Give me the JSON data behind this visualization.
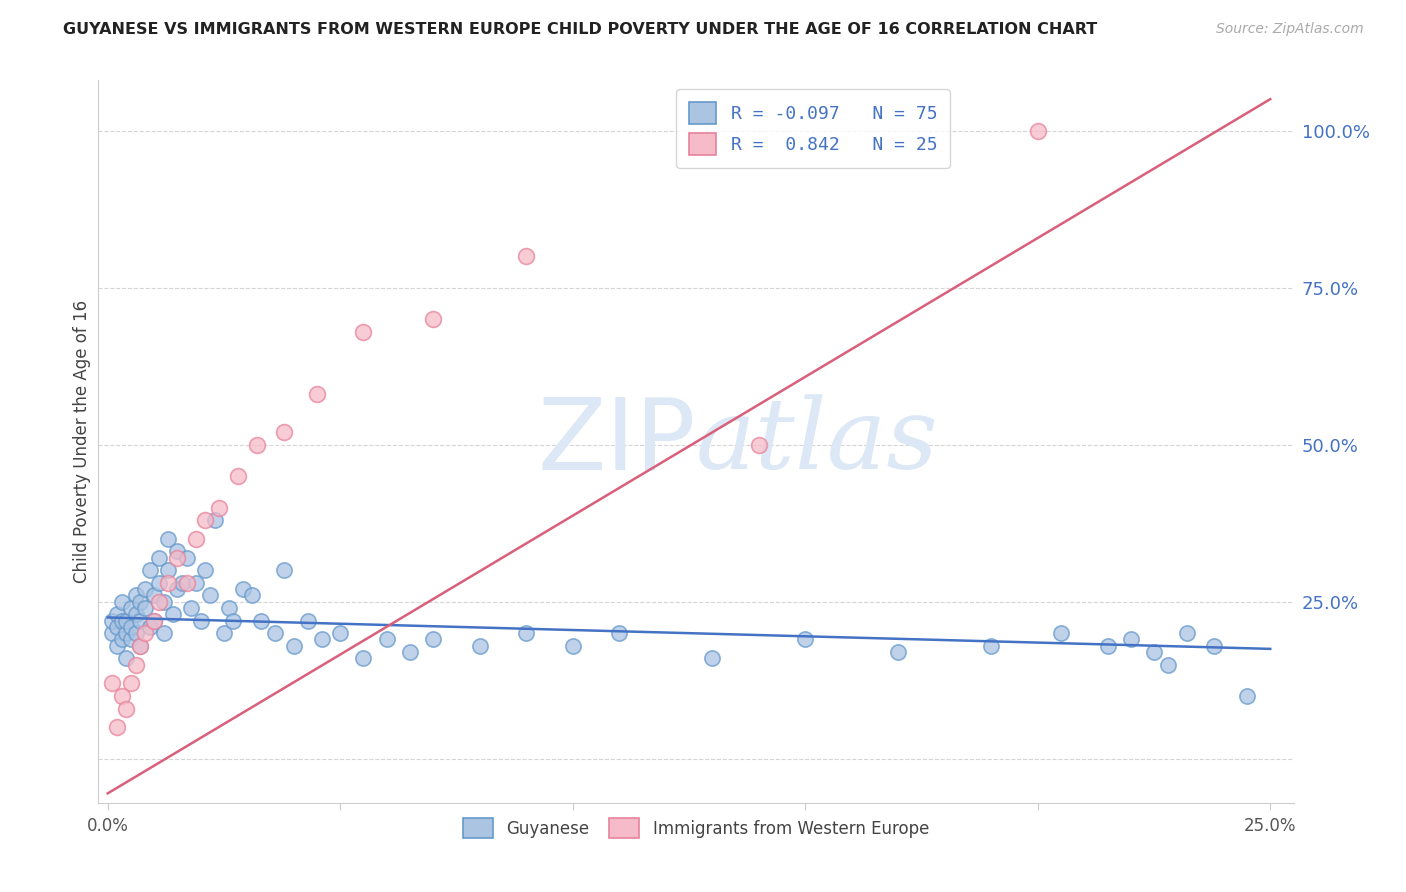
{
  "title": "GUYANESE VS IMMIGRANTS FROM WESTERN EUROPE CHILD POVERTY UNDER THE AGE OF 16 CORRELATION CHART",
  "source": "Source: ZipAtlas.com",
  "ylabel": "Child Poverty Under the Age of 16",
  "xlim": [
    -0.002,
    0.255
  ],
  "ylim": [
    -0.07,
    1.08
  ],
  "xticks": [
    0.0,
    0.05,
    0.1,
    0.15,
    0.2,
    0.25
  ],
  "xtick_labels": [
    "0.0%",
    "",
    "",
    "",
    "",
    "25.0%"
  ],
  "yticks_right": [
    0.0,
    0.25,
    0.5,
    0.75,
    1.0
  ],
  "ytick_labels_right": [
    "",
    "25.0%",
    "50.0%",
    "75.0%",
    "100.0%"
  ],
  "color_guyanese_fill": "#aac4e2",
  "color_guyanese_edge": "#6699cc",
  "color_we_fill": "#f5bbc8",
  "color_we_edge": "#e8829a",
  "color_line_guyanese": "#4472c4",
  "color_line_we": "#d95f7a",
  "watermark_color": "#dce8f5",
  "grid_color": "#d5d5d5",
  "line_g_x0": 0.0,
  "line_g_y0": 0.225,
  "line_g_x1": 0.25,
  "line_g_y1": 0.175,
  "line_we_x0": 0.0,
  "line_we_y0": -0.055,
  "line_we_x1": 0.25,
  "line_we_y1": 1.05,
  "guyanese_x": [
    0.001,
    0.001,
    0.002,
    0.002,
    0.002,
    0.003,
    0.003,
    0.003,
    0.004,
    0.004,
    0.004,
    0.005,
    0.005,
    0.005,
    0.006,
    0.006,
    0.006,
    0.007,
    0.007,
    0.007,
    0.008,
    0.008,
    0.009,
    0.009,
    0.01,
    0.01,
    0.011,
    0.011,
    0.012,
    0.012,
    0.013,
    0.013,
    0.014,
    0.015,
    0.015,
    0.016,
    0.017,
    0.018,
    0.019,
    0.02,
    0.021,
    0.022,
    0.023,
    0.025,
    0.026,
    0.027,
    0.029,
    0.031,
    0.033,
    0.036,
    0.038,
    0.04,
    0.043,
    0.046,
    0.05,
    0.055,
    0.06,
    0.065,
    0.07,
    0.08,
    0.09,
    0.1,
    0.11,
    0.13,
    0.15,
    0.17,
    0.19,
    0.205,
    0.215,
    0.22,
    0.225,
    0.228,
    0.232,
    0.238,
    0.245
  ],
  "guyanese_y": [
    0.2,
    0.22,
    0.18,
    0.21,
    0.23,
    0.19,
    0.22,
    0.25,
    0.2,
    0.22,
    0.16,
    0.19,
    0.21,
    0.24,
    0.2,
    0.23,
    0.26,
    0.22,
    0.25,
    0.18,
    0.24,
    0.27,
    0.21,
    0.3,
    0.22,
    0.26,
    0.28,
    0.32,
    0.25,
    0.2,
    0.3,
    0.35,
    0.23,
    0.27,
    0.33,
    0.28,
    0.32,
    0.24,
    0.28,
    0.22,
    0.3,
    0.26,
    0.38,
    0.2,
    0.24,
    0.22,
    0.27,
    0.26,
    0.22,
    0.2,
    0.3,
    0.18,
    0.22,
    0.19,
    0.2,
    0.16,
    0.19,
    0.17,
    0.19,
    0.18,
    0.2,
    0.18,
    0.2,
    0.16,
    0.19,
    0.17,
    0.18,
    0.2,
    0.18,
    0.19,
    0.17,
    0.15,
    0.2,
    0.18,
    0.1
  ],
  "we_x": [
    0.001,
    0.002,
    0.003,
    0.004,
    0.005,
    0.006,
    0.007,
    0.008,
    0.01,
    0.011,
    0.013,
    0.015,
    0.017,
    0.019,
    0.021,
    0.024,
    0.028,
    0.032,
    0.038,
    0.045,
    0.055,
    0.07,
    0.09,
    0.14,
    0.2
  ],
  "we_y": [
    0.12,
    0.05,
    0.1,
    0.08,
    0.12,
    0.15,
    0.18,
    0.2,
    0.22,
    0.25,
    0.28,
    0.32,
    0.28,
    0.35,
    0.38,
    0.4,
    0.45,
    0.5,
    0.52,
    0.58,
    0.68,
    0.7,
    0.8,
    0.5,
    1.0
  ]
}
